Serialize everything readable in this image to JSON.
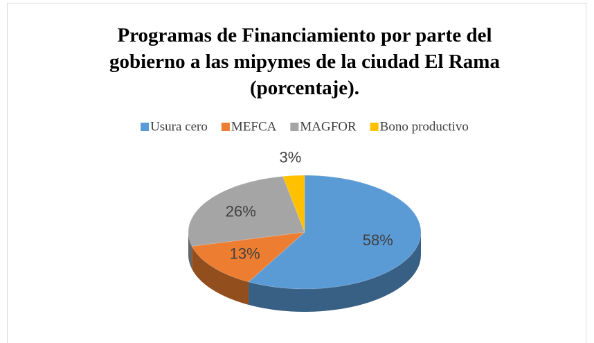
{
  "chart_data": {
    "type": "pie3d",
    "title": [
      "Programas de Financiamiento por parte del",
      "gobierno a las mipymes de la ciudad El Rama",
      "(porcentaje)."
    ],
    "categories": [
      "Usura cero",
      "MEFCA",
      "MAGFOR",
      "Bono productivo"
    ],
    "values": [
      58,
      13,
      26,
      3
    ],
    "value_labels": [
      "58%",
      "13%",
      "26%",
      "3%"
    ],
    "colors": [
      "#5b9bd5",
      "#ed7d31",
      "#a5a5a5",
      "#ffc000"
    ],
    "legend": "top"
  }
}
